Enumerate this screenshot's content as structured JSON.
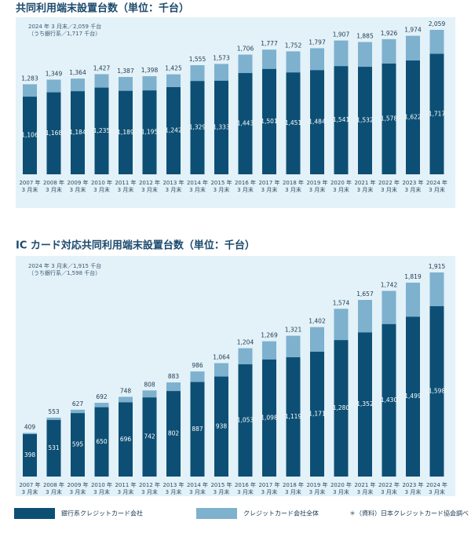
{
  "chart_data": [
    {
      "type": "bar",
      "title": "共同利用端末設置台数（単位：千台）",
      "annotations": [
        "2024 年 3 月末／2,059 千台",
        "（うち銀行系／1,717 千台）"
      ],
      "categories": [
        [
          "2007 年",
          "3 月末"
        ],
        [
          "2008 年",
          "3 月末"
        ],
        [
          "2009 年",
          "3 月末"
        ],
        [
          "2010 年",
          "3 月末"
        ],
        [
          "2011 年",
          "3 月末"
        ],
        [
          "2012 年",
          "3 月末"
        ],
        [
          "2013 年",
          "3 月末"
        ],
        [
          "2014 年",
          "3 月末"
        ],
        [
          "2015 年",
          "3 月末"
        ],
        [
          "2016 年",
          "3 月末"
        ],
        [
          "2017 年",
          "3 月末"
        ],
        [
          "2018 年",
          "3 月末"
        ],
        [
          "2019 年",
          "3 月末"
        ],
        [
          "2020 年",
          "3 月末"
        ],
        [
          "2021 年",
          "3 月末"
        ],
        [
          "2022 年",
          "3 月末"
        ],
        [
          "2023 年",
          "3 月末"
        ],
        [
          "2024 年",
          "3 月末"
        ]
      ],
      "series": [
        {
          "color": "#7db1ce",
          "values": [
            1283,
            1349,
            1364,
            1427,
            1387,
            1398,
            1425,
            1555,
            1573,
            1706,
            1777,
            1752,
            1797,
            1907,
            1885,
            1926,
            1974,
            2059
          ],
          "value_labels": [
            "1,283",
            "1,349",
            "1,364",
            "1,427",
            "1,387",
            "1,398",
            "1,425",
            "1,555",
            "1,573",
            "1,706",
            "1,777",
            "1,752",
            "1,797",
            "1,907",
            "1,885",
            "1,926",
            "1,974",
            "2,059"
          ]
        },
        {
          "color": "#0d4f74",
          "values": [
            1106,
            1168,
            1184,
            1235,
            1189,
            1195,
            1242,
            1329,
            1333,
            1443,
            1501,
            1451,
            1484,
            1541,
            1532,
            1578,
            1622,
            1717
          ],
          "value_labels": [
            "1,106",
            "1,168",
            "1,184",
            "1,235",
            "1,189",
            "1,195",
            "1,242",
            "1,329",
            "1,333",
            "1,443",
            "1,501",
            "1,451",
            "1,484",
            "1,541",
            "1,532",
            "1,578",
            "1,622",
            "1,717"
          ]
        }
      ]
    },
    {
      "type": "bar",
      "title": "IC カード対応共同利用端末設置台数（単位：千台）",
      "annotations": [
        "2024 年 3 月末／1,915 千台",
        "（うち銀行系／1,598 千台）"
      ],
      "categories": [
        [
          "2007 年",
          "3 月末"
        ],
        [
          "2008 年",
          "3 月末"
        ],
        [
          "2009 年",
          "3 月末"
        ],
        [
          "2010 年",
          "3 月末"
        ],
        [
          "2011 年",
          "3 月末"
        ],
        [
          "2012 年",
          "3 月末"
        ],
        [
          "2013 年",
          "3 月末"
        ],
        [
          "2014 年",
          "3 月末"
        ],
        [
          "2015 年",
          "3 月末"
        ],
        [
          "2016 年",
          "3 月末"
        ],
        [
          "2017 年",
          "3 月末"
        ],
        [
          "2018 年",
          "3 月末"
        ],
        [
          "2019 年",
          "3 月末"
        ],
        [
          "2020 年",
          "3 月末"
        ],
        [
          "2021 年",
          "3 月末"
        ],
        [
          "2022 年",
          "3 月末"
        ],
        [
          "2023 年",
          "3 月末"
        ],
        [
          "2024 年",
          "3 月末"
        ]
      ],
      "series": [
        {
          "color": "#7db1ce",
          "values": [
            409,
            553,
            627,
            692,
            748,
            808,
            883,
            986,
            1064,
            1204,
            1269,
            1321,
            1402,
            1574,
            1657,
            1742,
            1819,
            1915
          ],
          "value_labels": [
            "409",
            "553",
            "627",
            "692",
            "748",
            "808",
            "883",
            "986",
            "1,064",
            "1,204",
            "1,269",
            "1,321",
            "1,402",
            "1,574",
            "1,657",
            "1,742",
            "1,819",
            "1,915"
          ]
        },
        {
          "color": "#0d4f74",
          "values": [
            398,
            531,
            595,
            650,
            696,
            742,
            802,
            887,
            938,
            1053,
            1098,
            1119,
            1171,
            1280,
            1352,
            1430,
            1499,
            1598
          ],
          "value_labels": [
            "398",
            "531",
            "595",
            "650",
            "696",
            "742",
            "802",
            "887",
            "938",
            "1,053",
            "1,098",
            "1,119",
            "1,171",
            "1,280",
            "1,352",
            "1,430",
            "1,499",
            "1,598"
          ]
        }
      ]
    }
  ],
  "legend": [
    {
      "name": "銀行系クレジットカード会社",
      "color": "#0d4f74"
    },
    {
      "name": "クレジットカード会社全体",
      "color": "#7db1ce"
    }
  ],
  "source": "＊（資料）日本クレジットカード協会調べ"
}
